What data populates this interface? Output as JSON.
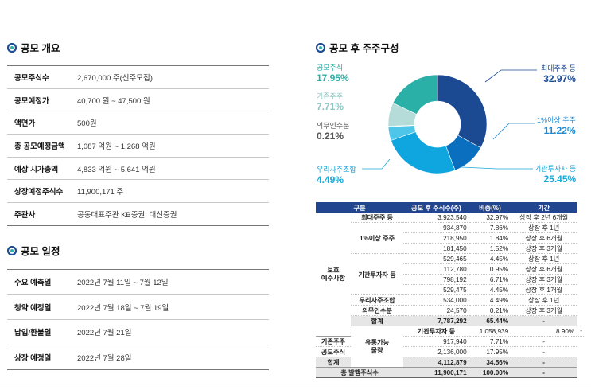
{
  "overview": {
    "title": "공모 개요",
    "rows": [
      {
        "k": "공모주식수",
        "v": "2,670,000 주(신주모집)"
      },
      {
        "k": "공모예정가",
        "v": "40,700 원 ~ 47,500 원"
      },
      {
        "k": "액면가",
        "v": "500원"
      },
      {
        "k": "총 공모예정금액",
        "v": "1,087 억원 ~ 1,268 억원"
      },
      {
        "k": "예상 시가총액",
        "v": "4,833 억원 ~ 5,641 억원"
      },
      {
        "k": "상장예정주식수",
        "v": "11,900,171 주"
      },
      {
        "k": "주관사",
        "v": "공동대표주관 KB증권, 대신증권"
      }
    ]
  },
  "schedule": {
    "title": "공모 일정",
    "rows": [
      {
        "k": "수요 예측일",
        "v": "2022년 7월 11일 ~ 7월 12일"
      },
      {
        "k": "청약 예정일",
        "v": "2022년 7월 18일 ~ 7월 19일"
      },
      {
        "k": "납입/환불일",
        "v": "2022년 7월 21일"
      },
      {
        "k": "상장 예정일",
        "v": "2022년 7월 28일"
      }
    ]
  },
  "composition": {
    "title": "공모 후 주주구성",
    "labels": [
      {
        "name": "공모주식",
        "pct": "17.95%",
        "color": "#2bb0a8"
      },
      {
        "name": "기존주주",
        "pct": "7.71%",
        "color": "#9acdc9"
      },
      {
        "name": "의무인수분",
        "pct": "0.21%",
        "color": "#555555"
      },
      {
        "name": "우리사주조합",
        "pct": "4.49%",
        "color": "#1aa8d6"
      },
      {
        "name": "최대주주 등",
        "pct": "32.97%",
        "color": "#1d4b94"
      },
      {
        "name": "1%이상 주주",
        "pct": "11.22%",
        "color": "#1d8bd6"
      },
      {
        "name": "기관투자자 등",
        "pct": "25.45%",
        "color": "#1aa8d6"
      }
    ]
  },
  "chart_data": {
    "type": "pie",
    "labels": [
      "최대주주 등",
      "1%이상 주주",
      "기관투자자 등",
      "우리사주조합",
      "의무인수분",
      "기존주주",
      "공모주식"
    ],
    "values": [
      32.97,
      11.22,
      25.45,
      4.49,
      0.21,
      7.71,
      17.95
    ],
    "colors": [
      "#1b4a93",
      "#0a6fbf",
      "#0fa6df",
      "#4ec6ea",
      "#7fd2ee",
      "#b5dcd8",
      "#2bb0a8"
    ]
  },
  "table": {
    "headers": [
      "구분",
      "공모 후 주식수(주)",
      "비중(%)",
      "기간"
    ],
    "group1": "보호\n예수사항",
    "group2": "유통가능\n물량",
    "r1": {
      "sub": "최대주주 등",
      "n": "3,923,540",
      "p": "32.97%",
      "t": "상장 후 2년 6개월"
    },
    "g2sub": "1%이상 주주",
    "g2": [
      {
        "n": "934,870",
        "p": "7.86%",
        "t": "상장 후 1년"
      },
      {
        "n": "218,950",
        "p": "1.84%",
        "t": "상장 후 6개월"
      },
      {
        "n": "181,450",
        "p": "1.52%",
        "t": "상장 후 3개월"
      }
    ],
    "g3sub": "기관투자자 등",
    "g3": [
      {
        "n": "529,465",
        "p": "4.45%",
        "t": "상장 후 1년"
      },
      {
        "n": "112,780",
        "p": "0.95%",
        "t": "상장 후 6개월"
      },
      {
        "n": "798,192",
        "p": "6.71%",
        "t": "상장 후 3개월"
      },
      {
        "n": "529,475",
        "p": "4.45%",
        "t": "상장 후 1개월"
      }
    ],
    "r_woori": {
      "sub": "우리사주조합",
      "n": "534,000",
      "p": "4.49%",
      "t": "상장 후 1년"
    },
    "r_duty": {
      "sub": "의무인수분",
      "n": "24,570",
      "p": "0.21%",
      "t": "상장 후 3개월"
    },
    "sum1": {
      "label": "합계",
      "n": "7,787,292",
      "p": "65.44%",
      "t": "-"
    },
    "f1": {
      "sub": "기관투자자 등",
      "n": "1,058,939",
      "p": "8.90%",
      "t": "-"
    },
    "f2": {
      "sub": "기존주주",
      "n": "917,940",
      "p": "7.71%",
      "t": "-"
    },
    "f3": {
      "sub": "공모주식",
      "n": "2,136,000",
      "p": "17.95%",
      "t": "-"
    },
    "sum2": {
      "label": "합계",
      "n": "4,112,879",
      "p": "34.56%",
      "t": "-"
    },
    "grand": {
      "label": "총 발행주식수",
      "n": "11,900,171",
      "p": "100.00%",
      "t": "-"
    }
  }
}
